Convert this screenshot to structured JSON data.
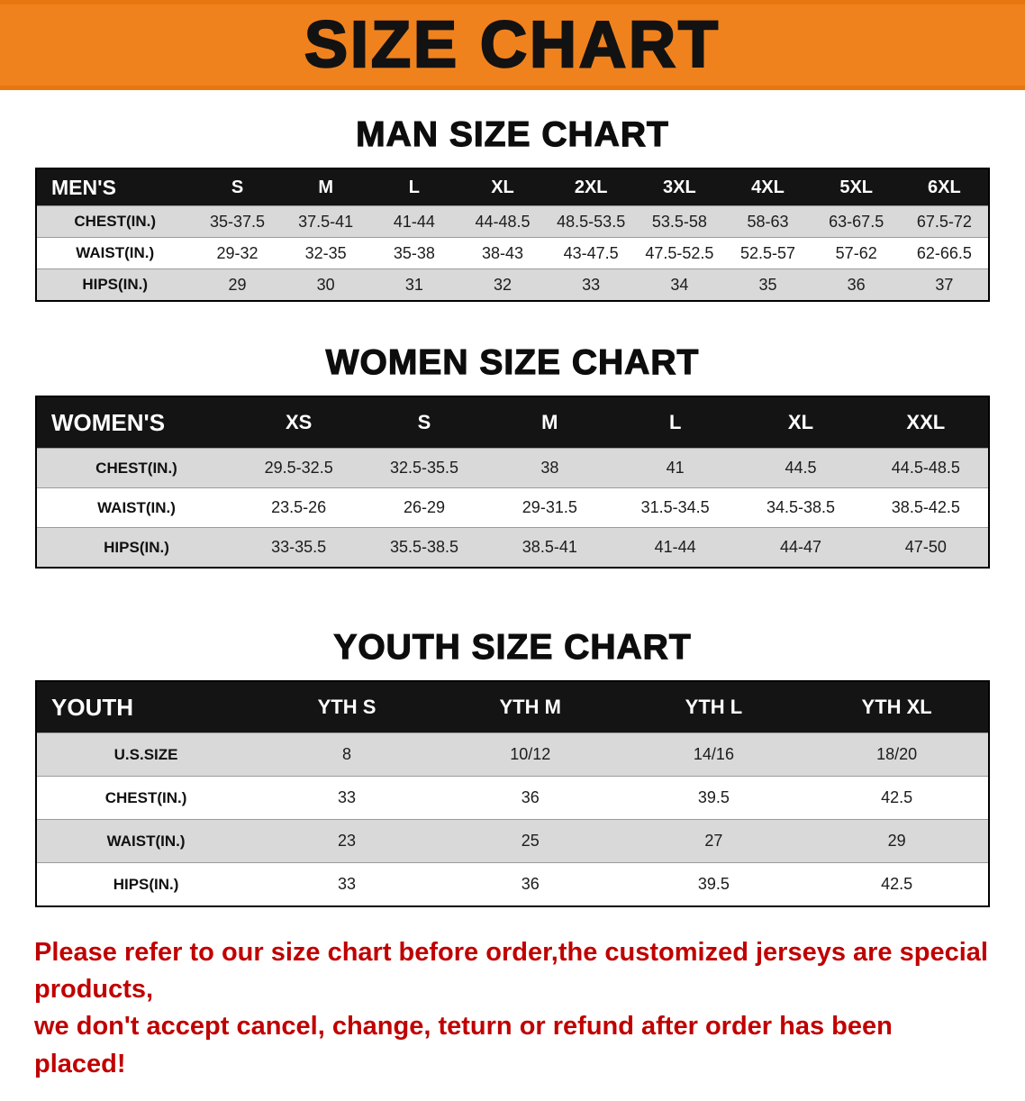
{
  "banner": {
    "title": "SIZE CHART"
  },
  "colors": {
    "banner_bg": "#F0821E",
    "header_bar": "#141414",
    "row_gray": "#D9D9D9",
    "footer_red": "#C00000"
  },
  "men": {
    "heading": "MAN SIZE CHART",
    "table": {
      "header": [
        "MEN'S",
        "S",
        "M",
        "L",
        "XL",
        "2XL",
        "3XL",
        "4XL",
        "5XL",
        "6XL"
      ],
      "rows": [
        [
          "CHEST(IN.)",
          "35-37.5",
          "37.5-41",
          "41-44",
          "44-48.5",
          "48.5-53.5",
          "53.5-58",
          "58-63",
          "63-67.5",
          "67.5-72"
        ],
        [
          "WAIST(IN.)",
          "29-32",
          "32-35",
          "35-38",
          "38-43",
          "43-47.5",
          "47.5-52.5",
          "52.5-57",
          "57-62",
          "62-66.5"
        ],
        [
          "HIPS(IN.)",
          "29",
          "30",
          "31",
          "32",
          "33",
          "34",
          "35",
          "36",
          "37"
        ]
      ]
    }
  },
  "women": {
    "heading": "WOMEN SIZE CHART",
    "table": {
      "header": [
        "WOMEN'S",
        "XS",
        "S",
        "M",
        "L",
        "XL",
        "XXL"
      ],
      "rows": [
        [
          "CHEST(IN.)",
          "29.5-32.5",
          "32.5-35.5",
          "38",
          "41",
          "44.5",
          "44.5-48.5"
        ],
        [
          "WAIST(IN.)",
          "23.5-26",
          "26-29",
          "29-31.5",
          "31.5-34.5",
          "34.5-38.5",
          "38.5-42.5"
        ],
        [
          "HIPS(IN.)",
          "33-35.5",
          "35.5-38.5",
          "38.5-41",
          "41-44",
          "44-47",
          "47-50"
        ]
      ]
    }
  },
  "youth": {
    "heading": "YOUTH SIZE CHART",
    "table": {
      "header": [
        "YOUTH",
        "YTH S",
        "YTH M",
        "YTH L",
        "YTH XL"
      ],
      "rows": [
        [
          "U.S.SIZE",
          "8",
          "10/12",
          "14/16",
          "18/20"
        ],
        [
          "CHEST(IN.)",
          "33",
          "36",
          "39.5",
          "42.5"
        ],
        [
          "WAIST(IN.)",
          "23",
          "25",
          "27",
          "29"
        ],
        [
          "HIPS(IN.)",
          "33",
          "36",
          "39.5",
          "42.5"
        ]
      ]
    }
  },
  "footer": {
    "lines": [
      "Please refer to our size chart before order,the customized jerseys are special products,",
      "we don't accept cancel, change, teturn or refund after order has been placed!"
    ]
  }
}
